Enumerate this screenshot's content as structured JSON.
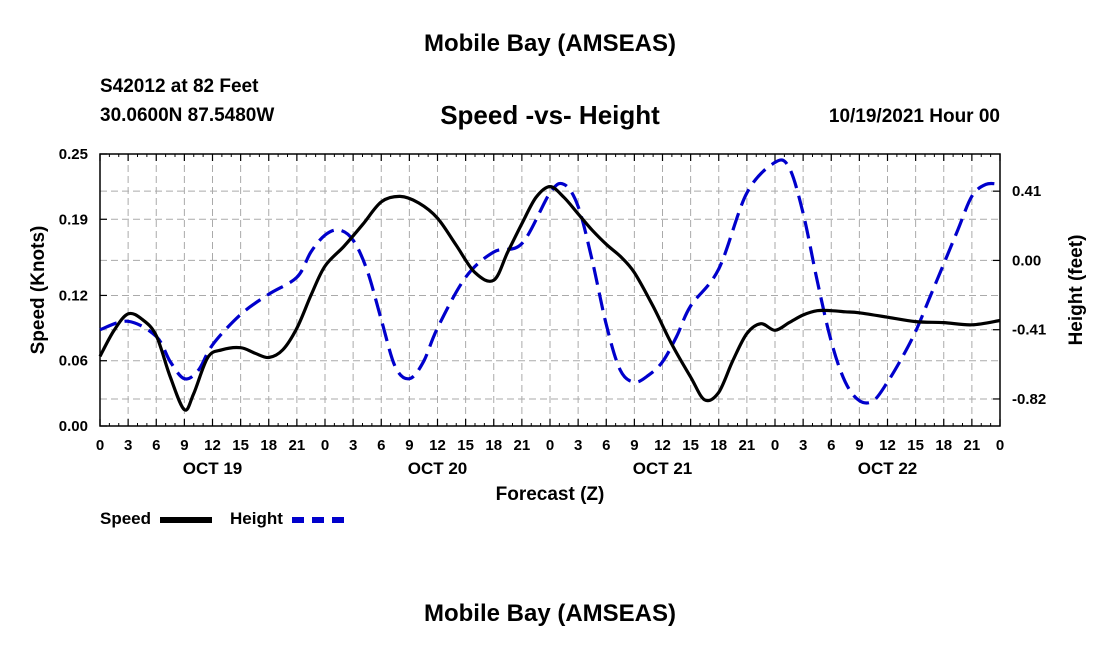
{
  "header": {
    "title": "Mobile Bay (AMSEAS)",
    "station": "S42012 at 82 Feet",
    "coords": "30.0600N  87.5480W",
    "subtitle": "Speed -vs- Height",
    "datetime": "10/19/2021 Hour 00"
  },
  "legend": {
    "speed_label": "Speed",
    "height_label": "Height"
  },
  "bottom_title": "Mobile Bay (AMSEAS)",
  "colors": {
    "speed": "#000000",
    "height": "#0000cc",
    "grid": "#aaaaaa"
  },
  "chart_data": {
    "type": "line",
    "title": "Speed -vs- Height",
    "xlabel": "Forecast (Z)",
    "ylabel": "Speed (Knots)",
    "y2label": "Height (feet)",
    "xlim": [
      0,
      96
    ],
    "ylim": [
      0,
      0.25
    ],
    "y2lim": [
      -0.98,
      0.63
    ],
    "x_ticks": [
      0,
      3,
      6,
      9,
      12,
      15,
      18,
      21,
      24,
      27,
      30,
      33,
      36,
      39,
      42,
      45,
      48,
      51,
      54,
      57,
      60,
      63,
      66,
      69,
      72,
      75,
      78,
      81,
      84,
      87,
      90,
      93,
      96
    ],
    "x_tick_labels": [
      "0",
      "3",
      "6",
      "9",
      "12",
      "15",
      "18",
      "21",
      "0",
      "3",
      "6",
      "9",
      "12",
      "15",
      "18",
      "21",
      "0",
      "3",
      "6",
      "9",
      "12",
      "15",
      "18",
      "21",
      "0",
      "3",
      "6",
      "9",
      "12",
      "15",
      "18",
      "21",
      "0"
    ],
    "date_labels": [
      {
        "label": "OCT 19",
        "x": 12
      },
      {
        "label": "OCT 20",
        "x": 36
      },
      {
        "label": "OCT 21",
        "x": 60
      },
      {
        "label": "OCT 22",
        "x": 84
      }
    ],
    "y_ticks": [
      0.0,
      0.06,
      0.12,
      0.19,
      0.25
    ],
    "y_tick_labels": [
      "0.00",
      "0.06",
      "0.12",
      "0.19",
      "0.25"
    ],
    "y2_ticks": [
      0.41,
      0.0,
      -0.41,
      -0.82
    ],
    "y2_tick_labels": [
      "0.41",
      "0.00",
      "-0.41",
      "-0.82"
    ],
    "series": [
      {
        "name": "Speed",
        "axis": "left",
        "style": "solid",
        "x": [
          0,
          1.5,
          3,
          4.5,
          6,
          7.5,
          9,
          10,
          11.5,
          13,
          15,
          16.5,
          18,
          19.5,
          21,
          22.5,
          24,
          26,
          28,
          30,
          32,
          34,
          36,
          38,
          40,
          42,
          43.5,
          45,
          46.5,
          48,
          49.5,
          51,
          52.5,
          54,
          55.5,
          57,
          59,
          61,
          63,
          64.5,
          66,
          67.5,
          69,
          70.5,
          72,
          73.5,
          75,
          76.5,
          78,
          79.5,
          81,
          84,
          87,
          90,
          93,
          96
        ],
        "values": [
          0.064,
          0.088,
          0.103,
          0.098,
          0.083,
          0.045,
          0.015,
          0.03,
          0.063,
          0.07,
          0.072,
          0.067,
          0.063,
          0.07,
          0.09,
          0.12,
          0.147,
          0.165,
          0.185,
          0.206,
          0.211,
          0.205,
          0.191,
          0.166,
          0.141,
          0.134,
          0.16,
          0.186,
          0.21,
          0.22,
          0.21,
          0.195,
          0.18,
          0.167,
          0.156,
          0.141,
          0.11,
          0.075,
          0.045,
          0.024,
          0.031,
          0.06,
          0.085,
          0.094,
          0.088,
          0.095,
          0.102,
          0.106,
          0.106,
          0.105,
          0.104,
          0.1,
          0.096,
          0.095,
          0.093,
          0.097
        ]
      },
      {
        "name": "Height",
        "axis": "right",
        "style": "dashed",
        "x": [
          0,
          3,
          6,
          7.5,
          9,
          10.5,
          12,
          15,
          18,
          21,
          22.5,
          24,
          25.5,
          27,
          28.5,
          30,
          31.5,
          33,
          34.5,
          36,
          39,
          42,
          45,
          48,
          49.5,
          51,
          52.5,
          54,
          55.5,
          57,
          58.5,
          60,
          61.5,
          63,
          66,
          69,
          72,
          73.5,
          75,
          76.5,
          78,
          79.5,
          81,
          82.5,
          84,
          85.5,
          87,
          88.5,
          90,
          91.5,
          93,
          94.5,
          96
        ],
        "values": [
          -0.41,
          -0.36,
          -0.45,
          -0.6,
          -0.7,
          -0.65,
          -0.5,
          -0.32,
          -0.2,
          -0.1,
          0.05,
          0.15,
          0.18,
          0.12,
          -0.06,
          -0.35,
          -0.63,
          -0.7,
          -0.6,
          -0.4,
          -0.1,
          0.05,
          0.1,
          0.4,
          0.45,
          0.32,
          0.0,
          -0.38,
          -0.65,
          -0.72,
          -0.68,
          -0.6,
          -0.45,
          -0.27,
          -0.05,
          0.4,
          0.58,
          0.55,
          0.28,
          -0.12,
          -0.48,
          -0.72,
          -0.83,
          -0.83,
          -0.72,
          -0.58,
          -0.42,
          -0.22,
          -0.02,
          0.18,
          0.38,
          0.45,
          0.45
        ]
      }
    ]
  }
}
